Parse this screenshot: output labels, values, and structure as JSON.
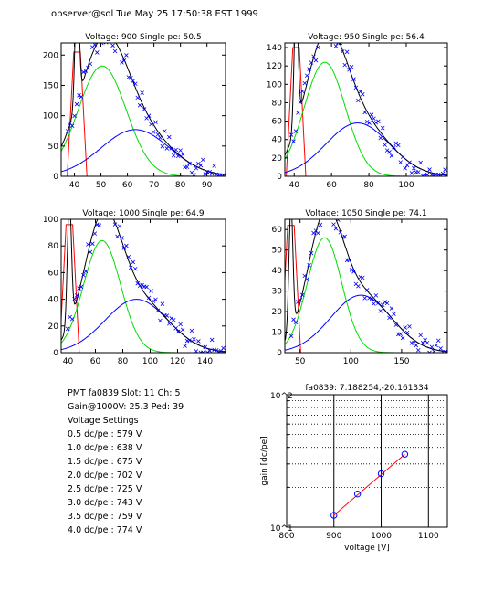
{
  "header": "observer@sol  Tue May 25 17:50:38 EST 1999",
  "info": {
    "pmt": "PMT fa0839 Slot: 11 Ch: 5",
    "gain": "Gain@1000V: 25.3 Ped: 39",
    "settings_title": "Voltage Settings",
    "settings": [
      "0.5 dc/pe : 579 V",
      "1.0 dc/pe : 638 V",
      "1.5 dc/pe : 675 V",
      "2.0 dc/pe : 702 V",
      "2.5 dc/pe : 725 V",
      "3.0 dc/pe : 743 V",
      "3.5 dc/pe : 759 V",
      "4.0 dc/pe : 774 V"
    ]
  },
  "chart_data": [
    {
      "type": "scatter",
      "title": "Voltage: 900 Single pe: 50.5",
      "xlim": [
        35,
        97
      ],
      "ylim": [
        0,
        220
      ],
      "xticks": [
        40,
        50,
        60,
        70,
        80,
        90
      ],
      "yticks": [
        0,
        50,
        100,
        150,
        200
      ],
      "mu1": 50.5,
      "s1": 9.0,
      "a1": 182,
      "mu2": 63.0,
      "s2": 13.0,
      "a2": 77,
      "ped": 41,
      "ped_top": 205,
      "grid": false,
      "series": [
        {
          "role": "data",
          "marker": "x",
          "color": "#0000ff"
        },
        {
          "role": "peak_1pe",
          "color": "#00dd00"
        },
        {
          "role": "peak_2pe",
          "color": "#0000ff"
        },
        {
          "role": "pedestal",
          "color": "#ff0000"
        },
        {
          "role": "total_fit",
          "color": "#000000"
        }
      ]
    },
    {
      "type": "scatter",
      "title": "Voltage: 950 Single pe: 56.4",
      "xlim": [
        35,
        122
      ],
      "ylim": [
        0,
        145
      ],
      "xticks": [
        40,
        60,
        80,
        100
      ],
      "yticks": [
        0,
        20,
        40,
        60,
        80,
        100,
        120,
        140
      ],
      "mu1": 56.4,
      "s1": 11.0,
      "a1": 124,
      "mu2": 74.0,
      "s2": 17.0,
      "a2": 58,
      "ped": 41,
      "ped_top": 140,
      "grid": false
    },
    {
      "type": "scatter",
      "title": "Voltage: 1000 Single pe: 64.9",
      "xlim": [
        35,
        155
      ],
      "ylim": [
        0,
        100
      ],
      "xticks": [
        40,
        60,
        80,
        100,
        120,
        140
      ],
      "yticks": [
        0,
        20,
        40,
        60,
        80,
        100
      ],
      "mu1": 64.9,
      "s1": 13.5,
      "a1": 84,
      "mu2": 90.0,
      "s2": 23.0,
      "a2": 40,
      "ped": 41,
      "ped_top": 96,
      "grid": false
    },
    {
      "type": "scatter",
      "title": "Voltage: 1050 Single pe: 74.1",
      "xlim": [
        35,
        195
      ],
      "ylim": [
        0,
        65
      ],
      "xticks": [
        50,
        100,
        150
      ],
      "yticks": [
        0,
        10,
        20,
        30,
        40,
        50,
        60
      ],
      "mu1": 74.1,
      "s1": 17.0,
      "a1": 56,
      "mu2": 110.0,
      "s2": 30.0,
      "a2": 28,
      "ped": 41,
      "ped_top": 62,
      "grid": false
    },
    {
      "type": "line",
      "title": "fa0839: 7.188254,-20.161334",
      "xlabel": "voltage [V]",
      "ylabel": "gain [dc/pe]",
      "xlim": [
        800,
        1140
      ],
      "ylim": [
        10,
        100
      ],
      "yscale": "log",
      "xticks": [
        800,
        900,
        1000,
        1100
      ],
      "ytick_labels": [
        "10^1",
        "10^2"
      ],
      "grid": true,
      "series": [
        {
          "role": "measured",
          "marker": "o",
          "color": "#0000ff",
          "x": [
            900,
            950,
            1000,
            1050
          ],
          "y": [
            12.3,
            17.8,
            25.3,
            35.5
          ]
        },
        {
          "role": "fit",
          "color": "#ff0000",
          "x": [
            900,
            1050
          ],
          "y": [
            12.3,
            35.5
          ]
        }
      ]
    }
  ]
}
